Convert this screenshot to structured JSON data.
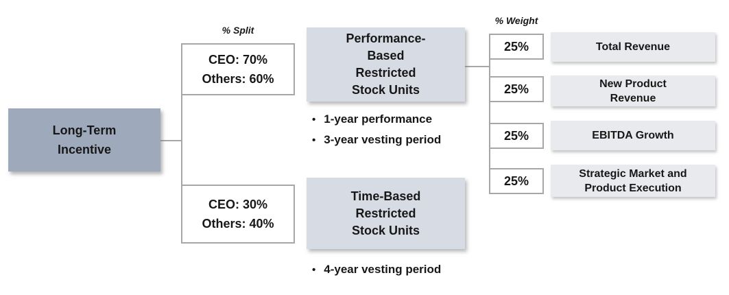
{
  "diagram": {
    "root": {
      "label": "Long-Term Incentive",
      "lines": [
        "Long-Term",
        "Incentive"
      ]
    },
    "split": {
      "header": "% Split",
      "top": {
        "lines": [
          "CEO: 70%",
          "Others: 60%"
        ]
      },
      "bottom": {
        "lines": [
          "CEO: 30%",
          "Others: 40%"
        ]
      }
    },
    "prsu": {
      "label": "Performance-Based Restricted Stock Units",
      "lines": [
        "Performance-",
        "Based",
        "Restricted",
        "Stock Units"
      ],
      "bullets": [
        "1-year performance",
        "3-year vesting period"
      ]
    },
    "rsu": {
      "label": "Time-Based Restricted Stock Units",
      "lines": [
        "Time-Based",
        "Restricted",
        "Stock Units"
      ],
      "bullets": [
        "4-year vesting period"
      ]
    },
    "weights": {
      "header": "% Weight",
      "items": [
        {
          "weight": "25%",
          "metric": "Total Revenue",
          "lines": [
            "Total Revenue"
          ]
        },
        {
          "weight": "25%",
          "metric": "New Product Revenue",
          "lines": [
            "New Product",
            "Revenue"
          ]
        },
        {
          "weight": "25%",
          "metric": "EBITDA Growth",
          "lines": [
            "EBITDA Growth"
          ]
        },
        {
          "weight": "25%",
          "metric": "Strategic Market and Product Execution",
          "lines": [
            "Strategic Market and",
            "Product Execution"
          ]
        }
      ]
    },
    "bullet_glyph": "•"
  },
  "colors": {
    "root_fill": "#9EA9BC",
    "unit_fill": "#D6DBE4",
    "metric_fill": "#E8EAED",
    "line": "#A6A6A6",
    "text": "#171717"
  }
}
